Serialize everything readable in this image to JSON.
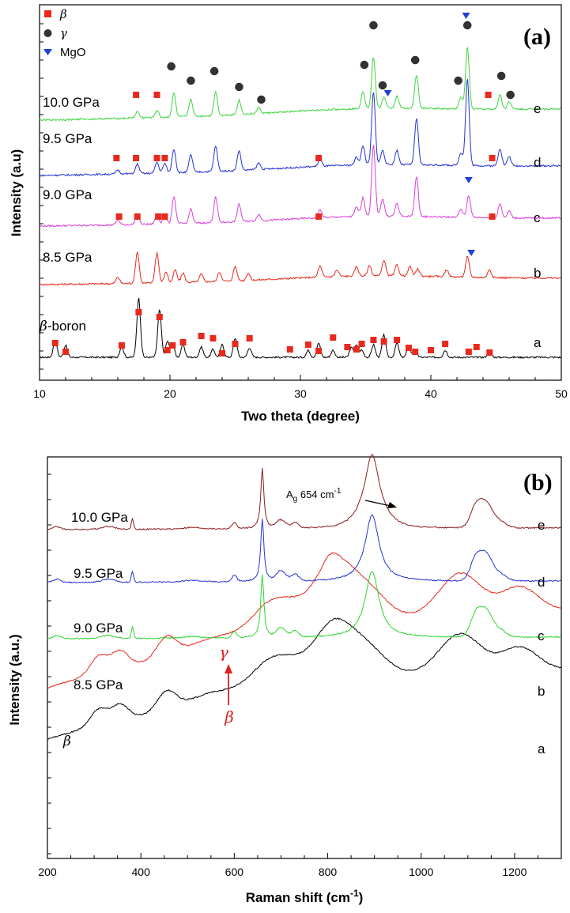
{
  "chart_data": [
    {
      "panel": "(a)",
      "type": "line",
      "xlabel": "Two theta (degree)",
      "ylabel": "Intensity (a.u)",
      "xlim": [
        10,
        50
      ],
      "xticks": [
        "10",
        "20",
        "30",
        "40",
        "50"
      ],
      "legend": {
        "placement": "top-left",
        "entries": [
          {
            "symbol": "square",
            "label": "β",
            "color": "#e8291c"
          },
          {
            "symbol": "circle",
            "label": "γ",
            "color": "#333333"
          },
          {
            "symbol": "triangle-down",
            "label": "MgO",
            "color": "#1f3fd8"
          }
        ]
      },
      "series": [
        {
          "name": "β-boron",
          "letter": "a",
          "color": "#000000",
          "offset": 0,
          "peaks": [
            [
              11.2,
              22
            ],
            [
              12.0,
              15
            ],
            [
              16.3,
              14
            ],
            [
              17.6,
              75
            ],
            [
              19.2,
              60
            ],
            [
              19.8,
              20
            ],
            [
              20.2,
              18
            ],
            [
              21.0,
              16
            ],
            [
              22.4,
              13
            ],
            [
              23.3,
              10
            ],
            [
              24.0,
              16
            ],
            [
              25.0,
              24
            ],
            [
              26.1,
              12
            ],
            [
              30.6,
              9
            ],
            [
              31.4,
              18
            ],
            [
              32.5,
              9
            ],
            [
              33.9,
              12
            ],
            [
              34.3,
              15
            ],
            [
              34.7,
              9
            ],
            [
              35.6,
              16
            ],
            [
              36.4,
              28
            ],
            [
              37.4,
              18
            ],
            [
              38.3,
              14
            ],
            [
              38.8,
              10
            ],
            [
              41.1,
              9
            ],
            [
              44.5,
              9
            ]
          ]
        },
        {
          "name": "8.5 GPa",
          "letter": "b",
          "color": "#e8291c",
          "offset": 1,
          "peaks": [
            [
              16.0,
              8
            ],
            [
              17.5,
              40
            ],
            [
              19.0,
              38
            ],
            [
              19.7,
              14
            ],
            [
              20.4,
              16
            ],
            [
              21.0,
              12
            ],
            [
              22.4,
              10
            ],
            [
              23.8,
              12
            ],
            [
              25.0,
              18
            ],
            [
              26.0,
              9
            ],
            [
              31.5,
              14
            ],
            [
              32.8,
              8
            ],
            [
              34.3,
              12
            ],
            [
              35.3,
              13
            ],
            [
              36.4,
              20
            ],
            [
              37.4,
              14
            ],
            [
              38.4,
              12
            ],
            [
              39.0,
              9
            ],
            [
              41.2,
              9
            ],
            [
              42.8,
              26
            ],
            [
              44.5,
              10
            ]
          ]
        },
        {
          "name": "9.0 GPa",
          "letter": "c",
          "color": "#d93fd9",
          "offset": 2,
          "peaks": [
            [
              16.0,
              6
            ],
            [
              17.5,
              14
            ],
            [
              19.0,
              12
            ],
            [
              19.6,
              12
            ],
            [
              20.3,
              34
            ],
            [
              21.6,
              18
            ],
            [
              23.5,
              32
            ],
            [
              25.3,
              22
            ],
            [
              26.8,
              8
            ],
            [
              31.5,
              10
            ],
            [
              34.3,
              12
            ],
            [
              34.8,
              24
            ],
            [
              35.6,
              90
            ],
            [
              36.3,
              22
            ],
            [
              37.4,
              16
            ],
            [
              38.9,
              50
            ],
            [
              42.3,
              10
            ],
            [
              42.9,
              28
            ],
            [
              45.3,
              18
            ],
            [
              46.0,
              9
            ]
          ]
        },
        {
          "name": "9.5 GPa",
          "letter": "d",
          "color": "#2433d4",
          "offset": 3,
          "peaks": [
            [
              16.0,
              5
            ],
            [
              17.5,
              12
            ],
            [
              19.0,
              14
            ],
            [
              19.6,
              12
            ],
            [
              20.3,
              30
            ],
            [
              21.6,
              22
            ],
            [
              23.5,
              32
            ],
            [
              25.3,
              25
            ],
            [
              26.8,
              8
            ],
            [
              31.5,
              8
            ],
            [
              34.3,
              10
            ],
            [
              34.8,
              24
            ],
            [
              35.6,
              92
            ],
            [
              36.3,
              18
            ],
            [
              37.4,
              18
            ],
            [
              38.9,
              58
            ],
            [
              42.3,
              16
            ],
            [
              42.8,
              110
            ],
            [
              45.3,
              22
            ],
            [
              46.0,
              12
            ]
          ]
        },
        {
          "name": "10.0 GPa",
          "letter": "e",
          "color": "#3ed43e",
          "offset": 4,
          "peaks": [
            [
              17.5,
              8
            ],
            [
              19.0,
              9
            ],
            [
              20.3,
              30
            ],
            [
              21.6,
              22
            ],
            [
              23.5,
              30
            ],
            [
              25.3,
              18
            ],
            [
              26.8,
              7
            ],
            [
              34.8,
              22
            ],
            [
              35.6,
              65
            ],
            [
              36.4,
              14
            ],
            [
              37.4,
              15
            ],
            [
              38.9,
              42
            ],
            [
              42.3,
              14
            ],
            [
              42.8,
              78
            ],
            [
              45.3,
              18
            ],
            [
              46.0,
              10
            ]
          ]
        }
      ],
      "markers": {
        "beta": [
          [
            11.2,
            "a"
          ],
          [
            12.0,
            "a"
          ],
          [
            16.3,
            "a"
          ],
          [
            17.6,
            "a-top"
          ],
          [
            19.2,
            "a-top"
          ],
          [
            19.8,
            "a"
          ],
          [
            20.2,
            "a"
          ],
          [
            21.0,
            "a"
          ],
          [
            22.4,
            "a"
          ],
          [
            23.3,
            "a"
          ],
          [
            24.0,
            "a"
          ],
          [
            25.0,
            "a"
          ],
          [
            26.1,
            "a"
          ],
          [
            29.2,
            "a"
          ],
          [
            30.6,
            "a"
          ],
          [
            31.4,
            "a"
          ],
          [
            32.5,
            "a"
          ],
          [
            33.6,
            "a"
          ],
          [
            34.3,
            "a"
          ],
          [
            34.7,
            "a"
          ],
          [
            35.6,
            "a"
          ],
          [
            36.4,
            "a"
          ],
          [
            37.4,
            "a"
          ],
          [
            38.3,
            "a"
          ],
          [
            38.8,
            "a"
          ],
          [
            40.0,
            "a"
          ],
          [
            41.1,
            "a"
          ],
          [
            42.9,
            "a"
          ],
          [
            43.5,
            "a"
          ],
          [
            44.5,
            "a"
          ],
          [
            16.1,
            "c"
          ],
          [
            17.5,
            "c"
          ],
          [
            19.1,
            "c"
          ],
          [
            19.6,
            "c"
          ],
          [
            31.4,
            "c"
          ],
          [
            44.7,
            "c"
          ],
          [
            15.9,
            "d"
          ],
          [
            17.4,
            "d"
          ],
          [
            19.0,
            "d"
          ],
          [
            19.6,
            "d"
          ],
          [
            31.4,
            "d"
          ],
          [
            44.7,
            "d"
          ],
          [
            17.4,
            "e"
          ],
          [
            19.0,
            "e"
          ],
          [
            44.4,
            "e"
          ]
        ],
        "gamma": [
          [
            20.1,
            "e"
          ],
          [
            21.6,
            "e"
          ],
          [
            23.4,
            "e"
          ],
          [
            25.3,
            "e"
          ],
          [
            27.0,
            "e"
          ],
          [
            34.9,
            "e"
          ],
          [
            35.6,
            "e-top"
          ],
          [
            36.3,
            "e"
          ],
          [
            38.8,
            "e"
          ],
          [
            42.1,
            "e"
          ],
          [
            42.8,
            "e-top"
          ],
          [
            45.4,
            "e"
          ],
          [
            46.1,
            "e"
          ]
        ],
        "mgo": [
          [
            36.7,
            "e"
          ],
          [
            42.7,
            "e-top"
          ],
          [
            42.9,
            "c"
          ],
          [
            43.1,
            "b"
          ]
        ]
      }
    },
    {
      "panel": "(b)",
      "type": "line",
      "xlabel": "Raman shift (cm⁻¹)",
      "ylabel": "Intensity (a.u.)",
      "xlim": [
        200,
        1300
      ],
      "xticks": [
        "200",
        "400",
        "600",
        "800",
        "1000",
        "1200"
      ],
      "annotations": {
        "ag": "Ag 654 cm⁻¹",
        "ag_main": "A",
        "ag_sub": "g",
        "ag_value": " 654 cm",
        "ag_sup": "-1",
        "gamma": "γ",
        "beta": "β",
        "beta_curve": "β"
      },
      "series": [
        {
          "name": "β",
          "letter": "a",
          "color": "#000000"
        },
        {
          "name": "8.5 GPa",
          "letter": "b",
          "color": "#e8291c"
        },
        {
          "name": "9.0 GPa",
          "letter": "c",
          "color": "#2ed42e"
        },
        {
          "name": "9.5 GPa",
          "letter": "d",
          "color": "#2433d4"
        },
        {
          "name": "10.0 GPa",
          "letter": "e",
          "color": "#8b1a1a"
        }
      ]
    }
  ]
}
